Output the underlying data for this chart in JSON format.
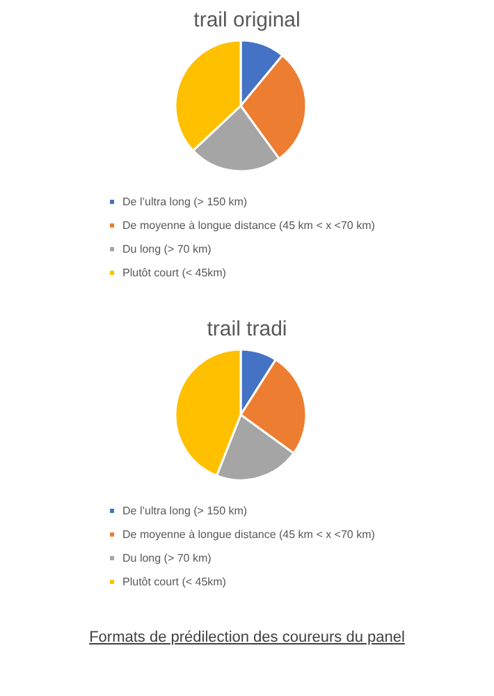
{
  "chart_data": [
    {
      "type": "pie",
      "title": "trail original",
      "categories": [
        "De l’ultra long (> 150 km)",
        "De moyenne à longue distance (45 km < x <70 km)",
        "Du long (> 70 km)",
        "Plutôt court (< 45km)"
      ],
      "values": [
        11,
        29,
        23,
        37
      ],
      "colors": [
        "#4472c4",
        "#ed7d31",
        "#a5a5a5",
        "#ffc000"
      ],
      "legend": "bottom"
    },
    {
      "type": "pie",
      "title": "trail tradi",
      "categories": [
        "De l’ultra long (> 150 km)",
        "De moyenne à longue distance (45 km < x <70 km)",
        "Du long (> 70 km)",
        "Plutôt court (< 45km)"
      ],
      "values": [
        9,
        26,
        21,
        44
      ],
      "colors": [
        "#4472c4",
        "#ed7d31",
        "#a5a5a5",
        "#ffc000"
      ],
      "legend": "bottom",
      "annotations": [
        "Formats de prédilection des coureurs du panel"
      ]
    }
  ]
}
